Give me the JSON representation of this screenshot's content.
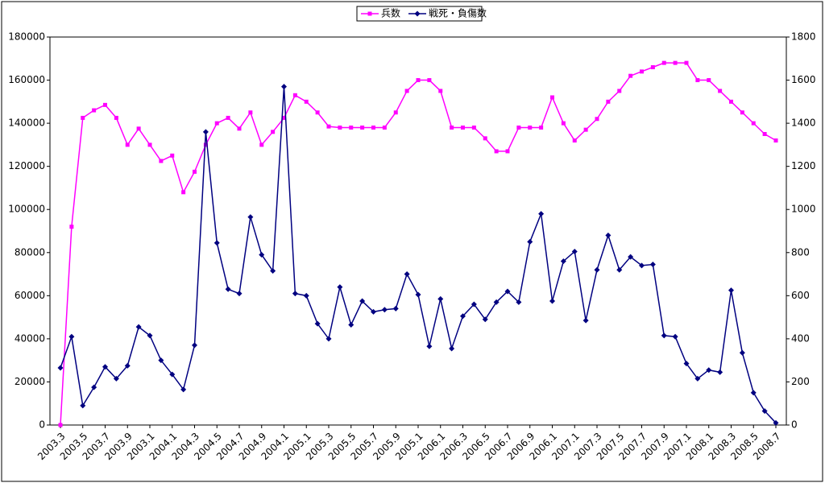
{
  "chart_data": {
    "type": "line",
    "categories": [
      "2003.3",
      null,
      "2003.5",
      null,
      "2003.7",
      null,
      "2003.9",
      null,
      "2003.1",
      null,
      "2004.1",
      null,
      "2004.3",
      null,
      "2004.5",
      null,
      "2004.7",
      null,
      "2004.9",
      null,
      "2004.1",
      null,
      "2005.1",
      null,
      "2005.3",
      null,
      "2005.5",
      null,
      "2005.7",
      null,
      "2005.9",
      null,
      "2005.1",
      null,
      "2006.1",
      null,
      "2006.3",
      null,
      "2006.5",
      null,
      "2006.7",
      null,
      "2006.9",
      null,
      "2006.1",
      null,
      "2007.1",
      null,
      "2007.3",
      null,
      "2007.5",
      null,
      "2007.7",
      null,
      "2007.9",
      null,
      "2007.1",
      null,
      "2008.1",
      null,
      "2008.3",
      null,
      "2008.5",
      null,
      "2008.7"
    ],
    "series": [
      {
        "name": "兵数",
        "color": "#ff00ff",
        "marker": "square",
        "values": [
          0,
          92000,
          142500,
          146000,
          148500,
          142500,
          130000,
          137500,
          130000,
          122500,
          125000,
          108000,
          117500,
          130000,
          140000,
          142500,
          137500,
          145000,
          130000,
          136000,
          142500,
          153000,
          150000,
          145000,
          138500,
          138000,
          138000,
          138000,
          138000,
          138000,
          145000,
          155000,
          160000,
          160000,
          155000,
          138000,
          138000,
          138000,
          133000,
          127000,
          127000,
          138000,
          138000,
          138000,
          152000,
          140000,
          132000,
          137000,
          142000,
          150000,
          155000,
          162000,
          164000,
          166000,
          168000,
          168000,
          168000,
          160000,
          160000,
          155000,
          150000,
          145000,
          140000,
          135000,
          132000
        ]
      },
      {
        "name": "戦死・負傷数",
        "color": "#000080",
        "marker": "diamond",
        "axis": "y2",
        "values": [
          265,
          410,
          90,
          175,
          270,
          215,
          275,
          455,
          415,
          300,
          235,
          165,
          370,
          1360,
          845,
          630,
          610,
          965,
          790,
          715,
          1570,
          610,
          600,
          470,
          400,
          640,
          465,
          575,
          525,
          535,
          540,
          700,
          605,
          365,
          585,
          355,
          505,
          560,
          490,
          570,
          620,
          570,
          850,
          980,
          575,
          760,
          805,
          485,
          720,
          880,
          720,
          780,
          740,
          745,
          415,
          410,
          285,
          215,
          255,
          245,
          625,
          335,
          150,
          65,
          10
        ]
      }
    ],
    "ylim": [
      0,
      180000
    ],
    "yticks": [
      0,
      20000,
      40000,
      60000,
      80000,
      100000,
      120000,
      140000,
      160000,
      180000
    ],
    "y2lim": [
      0,
      1800
    ],
    "y2ticks": [
      0,
      200,
      400,
      600,
      800,
      1000,
      1200,
      1400,
      1600,
      1800
    ],
    "legend": "top"
  }
}
